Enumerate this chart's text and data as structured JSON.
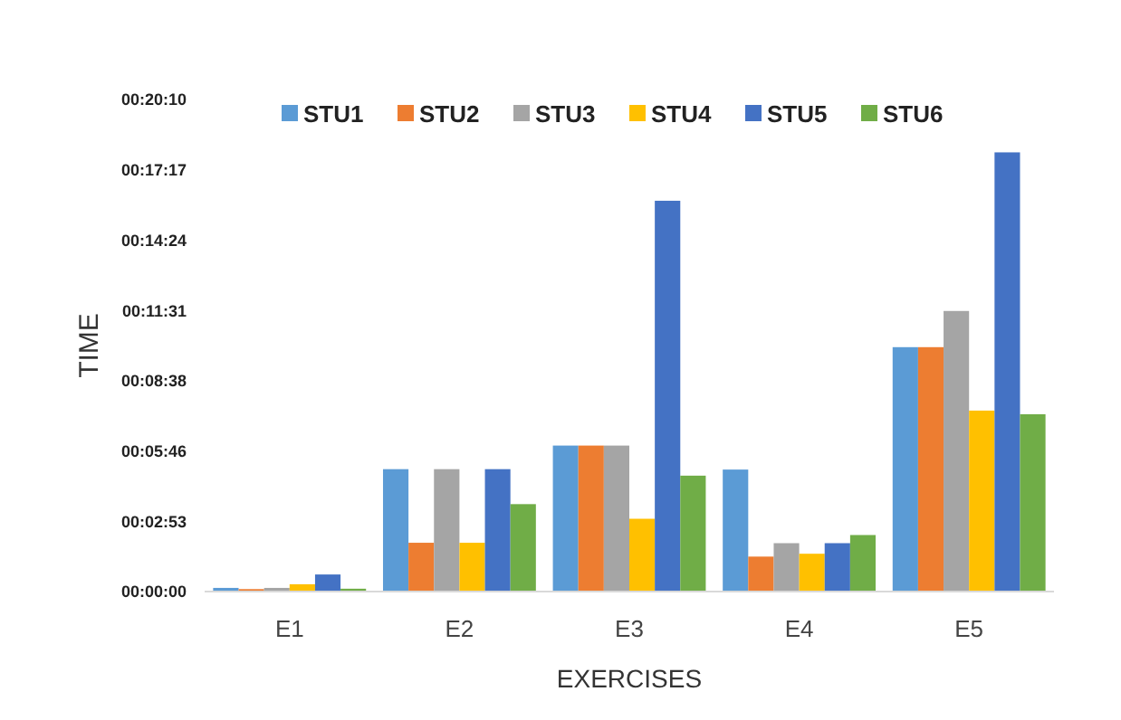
{
  "chart_data": {
    "type": "bar",
    "xlabel": "EXERCISES",
    "ylabel": "TIME",
    "categories": [
      "E1",
      "E2",
      "E3",
      "E4",
      "E5"
    ],
    "series": [
      {
        "name": "STU1",
        "color": "#5b9bd5",
        "values": [
          9,
          301,
          359,
          300,
          601
        ]
      },
      {
        "name": "STU2",
        "color": "#ed7d31",
        "values": [
          6,
          120,
          359,
          86,
          601
        ]
      },
      {
        "name": "STU3",
        "color": "#a5a5a5",
        "values": [
          9,
          301,
          359,
          119,
          690
        ]
      },
      {
        "name": "STU4",
        "color": "#ffc000",
        "values": [
          18,
          120,
          179,
          93,
          445
        ]
      },
      {
        "name": "STU5",
        "color": "#4472c4",
        "values": [
          42,
          301,
          961,
          119,
          1080
        ]
      },
      {
        "name": "STU6",
        "color": "#70ad47",
        "values": [
          7,
          215,
          285,
          139,
          436
        ]
      }
    ],
    "ylim": [
      0,
      1210
    ],
    "yticks": [
      {
        "value": 0,
        "label": "00:00:00"
      },
      {
        "value": 173,
        "label": "00:02:53"
      },
      {
        "value": 346,
        "label": "00:05:46"
      },
      {
        "value": 518,
        "label": "00:08:38"
      },
      {
        "value": 691,
        "label": "00:11:31"
      },
      {
        "value": 864,
        "label": "00:14:24"
      },
      {
        "value": 1037,
        "label": "00:17:17"
      },
      {
        "value": 1210,
        "label": "00:20:10"
      }
    ],
    "grid": false,
    "legend": "top"
  }
}
